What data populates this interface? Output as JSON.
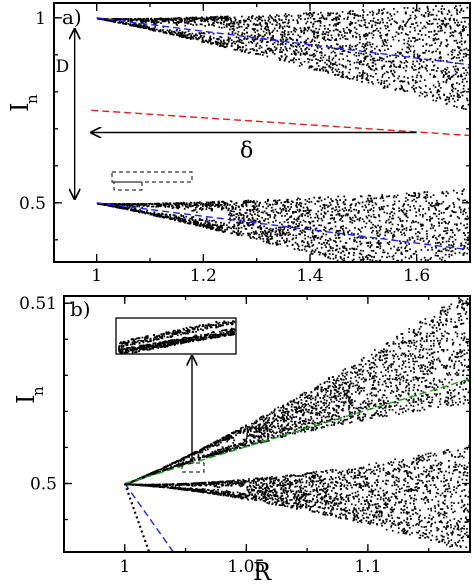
{
  "chart_data": [
    {
      "type": "scatter",
      "panel_label": "a)",
      "xlabel": "",
      "ylabel": "I",
      "ylabel_subscript": "n",
      "xlim": [
        0.92,
        1.7
      ],
      "ylim": [
        0.34,
        1.04
      ],
      "x_ticks": [
        1.0,
        1.2,
        1.4,
        1.6
      ],
      "x_tick_labels": [
        "1",
        "1.2",
        "1.4",
        "1.6"
      ],
      "y_ticks": [
        0.5,
        1.0
      ],
      "y_tick_labels": [
        "0.5",
        "1"
      ],
      "grid": false,
      "scatter_bands": [
        {
          "x_start": 1.0,
          "x_end": 1.7,
          "center_start": 1.0,
          "center_end": 0.895,
          "halfwidth_end": 0.145
        },
        {
          "x_start": 1.0,
          "x_end": 1.7,
          "center_start": 0.5,
          "center_end": 0.395,
          "halfwidth_end": 0.145
        }
      ],
      "series": [
        {
          "style": "dashed",
          "color": "#1f1fff",
          "x": [
            1.0,
            1.7
          ],
          "y": [
            1.0,
            0.873
          ]
        },
        {
          "style": "dashed",
          "color": "#1f1fff",
          "x": [
            1.0,
            1.7
          ],
          "y": [
            0.5,
            0.373
          ]
        },
        {
          "style": "dashed",
          "color": "#e02020",
          "x": [
            0.99,
            1.7
          ],
          "y": [
            0.75,
            0.682
          ]
        }
      ],
      "annotations": [
        {
          "text": "D",
          "kind": "double-arrow-vertical",
          "x": 0.985,
          "y_from": 0.5,
          "y_to": 0.985
        },
        {
          "text": "δ",
          "kind": "arrow-horizontal",
          "y": 0.69,
          "x_from": 1.6,
          "x_to": 0.99
        }
      ]
    },
    {
      "type": "scatter",
      "panel_label": "b)",
      "xlabel": "R",
      "ylabel": "I",
      "ylabel_subscript": "n",
      "xlim": [
        0.975,
        1.142
      ],
      "ylim": [
        0.4962,
        0.5104
      ],
      "x_ticks": [
        1.0,
        1.05,
        1.1
      ],
      "x_tick_labels": [
        "1",
        "1.05",
        "1.1"
      ],
      "y_ticks": [
        0.5,
        0.51
      ],
      "y_tick_labels": [
        "0.5",
        "0.51"
      ],
      "grid": false,
      "scatter_bands": [
        {
          "x_start": 1.0,
          "x_end": 1.142,
          "center_start": 0.5,
          "center_end": 0.5077,
          "halfwidth_end": 0.0032
        },
        {
          "x_start": 1.0,
          "x_end": 1.142,
          "center_start": 0.5,
          "center_end": 0.4992,
          "halfwidth_end": 0.003
        }
      ],
      "series": [
        {
          "style": "dashed",
          "color": "#18a018",
          "x": [
            1.0,
            1.142
          ],
          "y": [
            0.5,
            0.5058
          ]
        },
        {
          "style": "dashed",
          "color": "#1f1fff",
          "x": [
            1.0,
            1.02
          ],
          "y": [
            0.5,
            0.4962
          ]
        },
        {
          "style": "dotted",
          "color": "#000000",
          "x": [
            1.0,
            1.01
          ],
          "y": [
            0.5,
            0.4962
          ]
        }
      ],
      "inset": {
        "content": "zoomed view of the upper scatter branch near R = 1.036"
      }
    }
  ]
}
